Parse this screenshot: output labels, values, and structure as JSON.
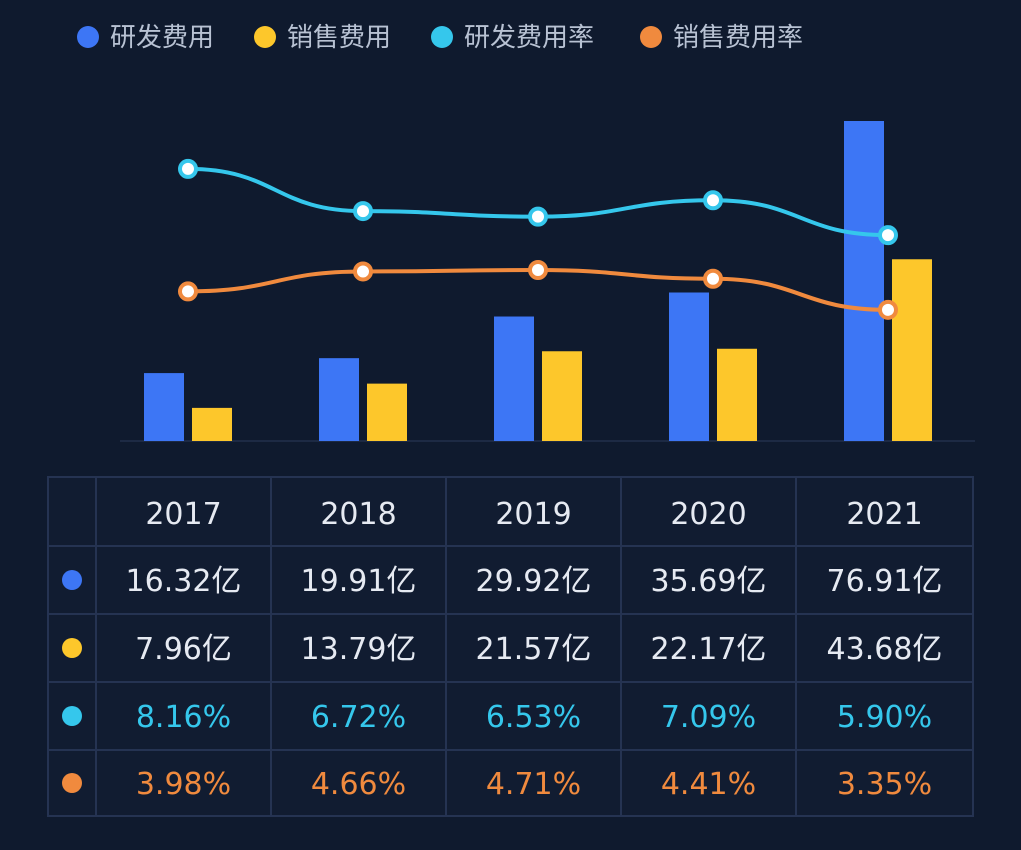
{
  "chart_data": {
    "type": "bar",
    "categories": [
      "2017",
      "2018",
      "2019",
      "2020",
      "2021"
    ],
    "series": [
      {
        "name": "研发费用",
        "kind": "bar",
        "color": "#3d76f5",
        "values": [
          16.32,
          19.91,
          29.92,
          35.69,
          76.91
        ],
        "labels": [
          "16.32亿",
          "19.91亿",
          "29.92亿",
          "35.69亿",
          "76.91亿"
        ]
      },
      {
        "name": "销售费用",
        "kind": "bar",
        "color": "#fdc72b",
        "values": [
          7.96,
          13.79,
          21.57,
          22.17,
          43.68
        ],
        "labels": [
          "7.96亿",
          "13.79亿",
          "21.57亿",
          "22.17亿",
          "43.68亿"
        ]
      },
      {
        "name": "研发费用率",
        "kind": "line",
        "color": "#35c7ec",
        "values": [
          8.16,
          6.72,
          6.53,
          7.09,
          5.9
        ],
        "labels": [
          "8.16%",
          "6.72%",
          "6.53%",
          "7.09%",
          "5.90%"
        ]
      },
      {
        "name": "销售费用率",
        "kind": "line",
        "color": "#f08a3e",
        "values": [
          3.98,
          4.66,
          4.71,
          4.41,
          3.35
        ],
        "labels": [
          "3.98%",
          "4.66%",
          "4.71%",
          "4.41%",
          "3.35%"
        ]
      }
    ],
    "bar_ylim": [
      0,
      85
    ],
    "line_ylim": [
      0,
      12
    ],
    "title": "",
    "xlabel": "",
    "ylabel": "",
    "grid": false,
    "legend_position": "top-left"
  },
  "colors": {
    "background": "#0f1a2e",
    "table_border": "#253352",
    "table_fill": "#111c31",
    "year_text": "#e6eaf2",
    "value_text": "#e6eaf2"
  }
}
